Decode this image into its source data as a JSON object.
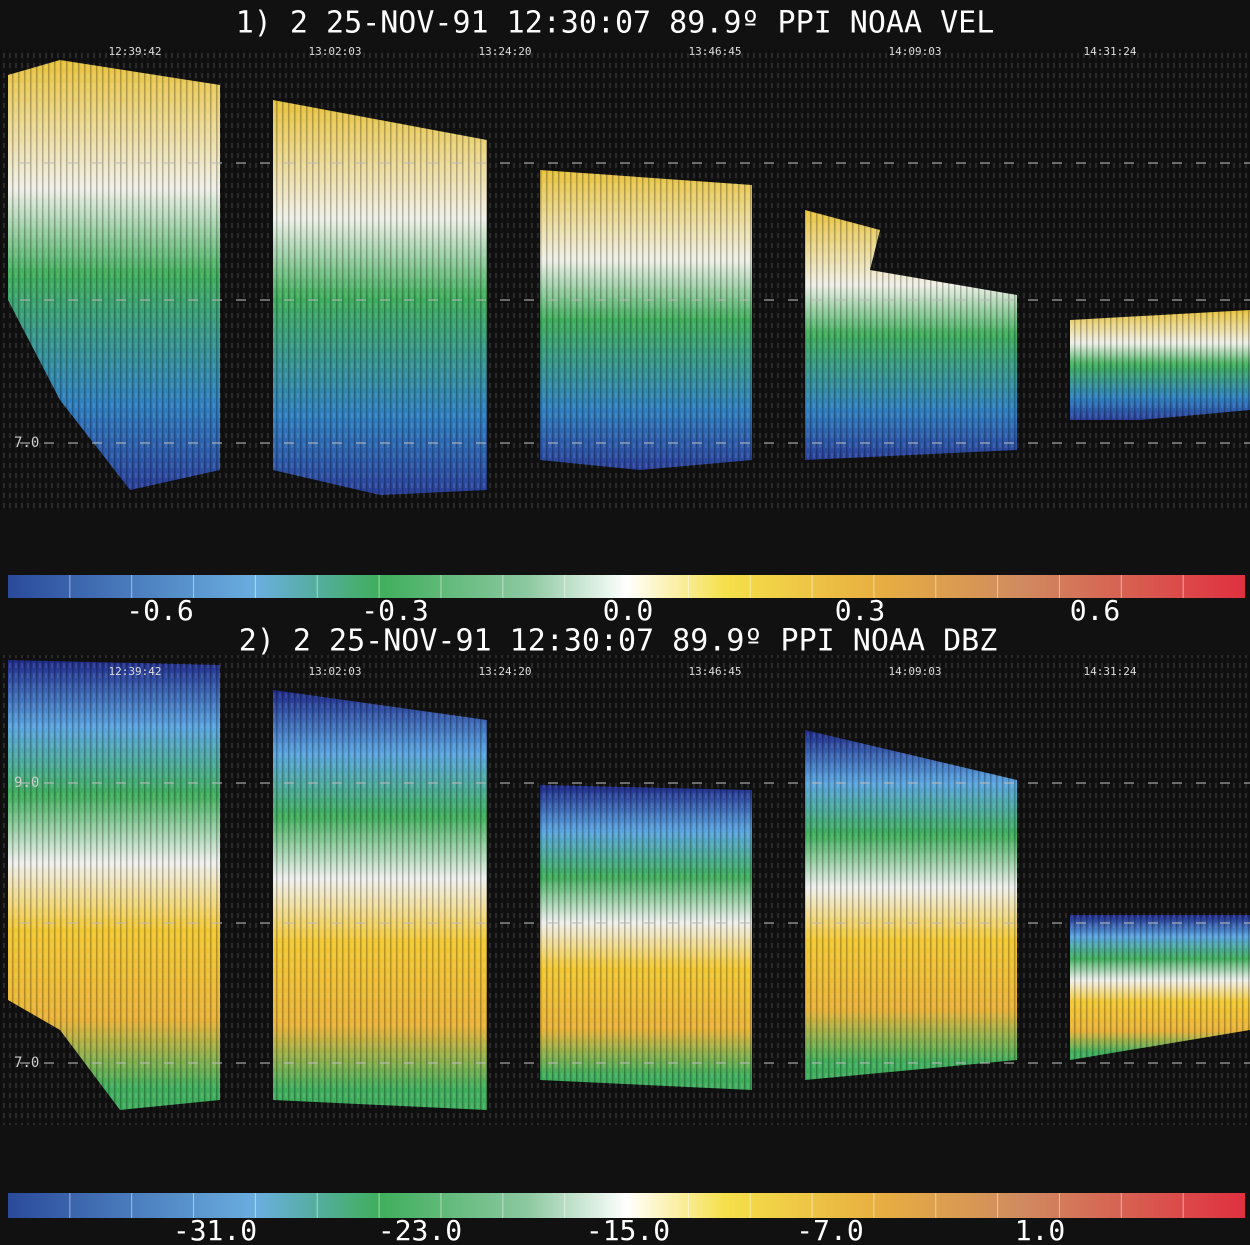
{
  "panels": [
    {
      "title": "1) 2 25-NOV-91 12:30:07 89.9º PPI NOAA VEL",
      "times": [
        "12:39:42",
        "13:02:03",
        "13:24:20",
        "13:46:45",
        "14:09:03",
        "14:31:24"
      ],
      "height_labels": [
        "7.0"
      ],
      "colorbar_labels": [
        "-0.6",
        "-0.3",
        "0.0",
        "0.3",
        "0.6"
      ]
    },
    {
      "title": "2) 2 25-NOV-91 12:30:07 89.9º PPI NOAA DBZ",
      "times": [
        "12:39:42",
        "13:02:03",
        "13:24:20",
        "13:46:45",
        "14:09:03",
        "14:31:24"
      ],
      "height_labels": [
        "9.0",
        "7.0"
      ],
      "colorbar_labels": [
        "-31.0",
        "-23.0",
        "-15.0",
        "-7.0",
        "1.0"
      ]
    }
  ]
}
